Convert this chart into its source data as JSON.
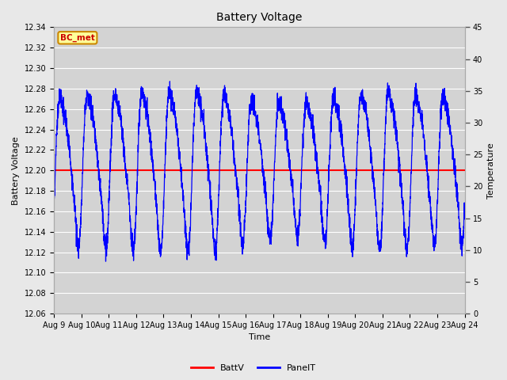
{
  "title": "Battery Voltage",
  "xlabel": "Time",
  "ylabel_left": "Battery Voltage",
  "ylabel_right": "Temperature",
  "xlim_start": 9,
  "xlim_end": 24,
  "ylim_left": [
    12.06,
    12.34
  ],
  "ylim_right": [
    0,
    45
  ],
  "yticks_left": [
    12.06,
    12.08,
    12.1,
    12.12,
    12.14,
    12.16,
    12.18,
    12.2,
    12.22,
    12.24,
    12.26,
    12.28,
    12.3,
    12.32,
    12.34
  ],
  "yticks_right": [
    0,
    5,
    10,
    15,
    20,
    25,
    30,
    35,
    40,
    45
  ],
  "xtick_labels": [
    "Aug 9",
    "Aug 10",
    "Aug 11",
    "Aug 12",
    "Aug 13",
    "Aug 14",
    "Aug 15",
    "Aug 16",
    "Aug 17",
    "Aug 18",
    "Aug 19",
    "Aug 20",
    "Aug 21",
    "Aug 22",
    "Aug 23",
    "Aug 24"
  ],
  "batt_voltage": 12.2,
  "batt_color": "#ff0000",
  "panel_color": "#0000ff",
  "bg_color": "#e8e8e8",
  "plot_bg_color": "#d3d3d3",
  "annotation_text": "BC_met",
  "annotation_bg": "#ffff99",
  "annotation_border": "#cc8800",
  "title_fontsize": 10,
  "axis_fontsize": 8,
  "tick_fontsize": 7
}
